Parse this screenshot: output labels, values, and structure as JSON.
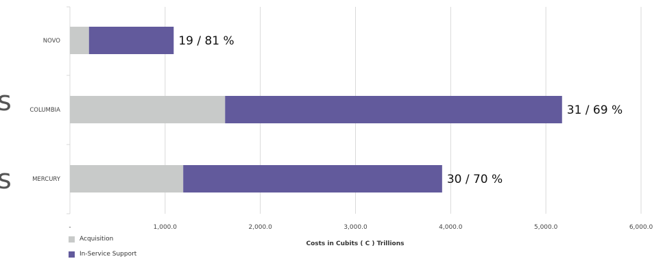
{
  "chart_data": {
    "type": "bar",
    "orientation": "horizontal",
    "stacked": true,
    "categories": [
      "NOVO",
      "COLUMBIA",
      "MERCURY"
    ],
    "series": [
      {
        "name": "Acquisition",
        "values": [
          200,
          1630,
          1190
        ],
        "color": "#c8cac9"
      },
      {
        "name": "In-Service Support",
        "values": [
          890,
          3540,
          2720
        ],
        "color": "#625a9c"
      }
    ],
    "data_labels": [
      "19 / 81 %",
      "31 / 69 %",
      "30 / 70 %"
    ],
    "xlabel": "Costs in Cubits ( C ) Trillions",
    "xlim": [
      0,
      6000
    ],
    "xticks": [
      0,
      1000,
      2000,
      3000,
      4000,
      5000,
      6000
    ],
    "xtick_labels": [
      "-",
      "1,000.0",
      "2,000.0",
      "3,000.0",
      "4,000.0",
      "5,000.0",
      "6,000.0"
    ],
    "grid": "vertical",
    "legend_position": "bottom-left"
  },
  "stray_text": [
    "s",
    "s"
  ]
}
